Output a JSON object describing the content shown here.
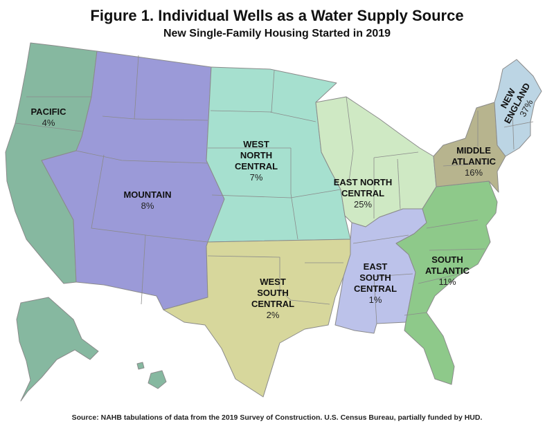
{
  "title": "Figure 1. Individual Wells as a Water Supply Source",
  "subtitle": "New Single-Family Housing Started in 2019",
  "source": "Source: NAHB tabulations of data from the 2019 Survey of Construction.  U.S. Census Bureau, partially funded by HUD.",
  "regions": {
    "pacific": {
      "name_lines": [
        "PACIFIC"
      ],
      "value": "4%",
      "color": "#86b8a0"
    },
    "mountain": {
      "name_lines": [
        "MOUNTAIN"
      ],
      "value": "8%",
      "color": "#9b9ad8"
    },
    "west_north_central": {
      "name_lines": [
        "WEST",
        "NORTH",
        "CENTRAL"
      ],
      "value": "7%",
      "color": "#a6e0cf"
    },
    "east_north_central": {
      "name_lines": [
        "EAST NORTH",
        "CENTRAL"
      ],
      "value": "25%",
      "color": "#cfe9c4"
    },
    "middle_atlantic": {
      "name_lines": [
        "MIDDLE",
        "ATLANTIC"
      ],
      "value": "16%",
      "color": "#b7b48e"
    },
    "new_england": {
      "name_lines": [
        "NEW",
        "ENGLAND"
      ],
      "value": "37%",
      "color": "#bcd5e4"
    },
    "west_south_central": {
      "name_lines": [
        "WEST",
        "SOUTH",
        "CENTRAL"
      ],
      "value": "2%",
      "color": "#d7d79c"
    },
    "east_south_central": {
      "name_lines": [
        "EAST",
        "SOUTH",
        "CENTRAL"
      ],
      "value": "1%",
      "color": "#bcc2ea"
    },
    "south_atlantic": {
      "name_lines": [
        "SOUTH",
        "ATLANTIC"
      ],
      "value": "11%",
      "color": "#8ec98a"
    }
  }
}
